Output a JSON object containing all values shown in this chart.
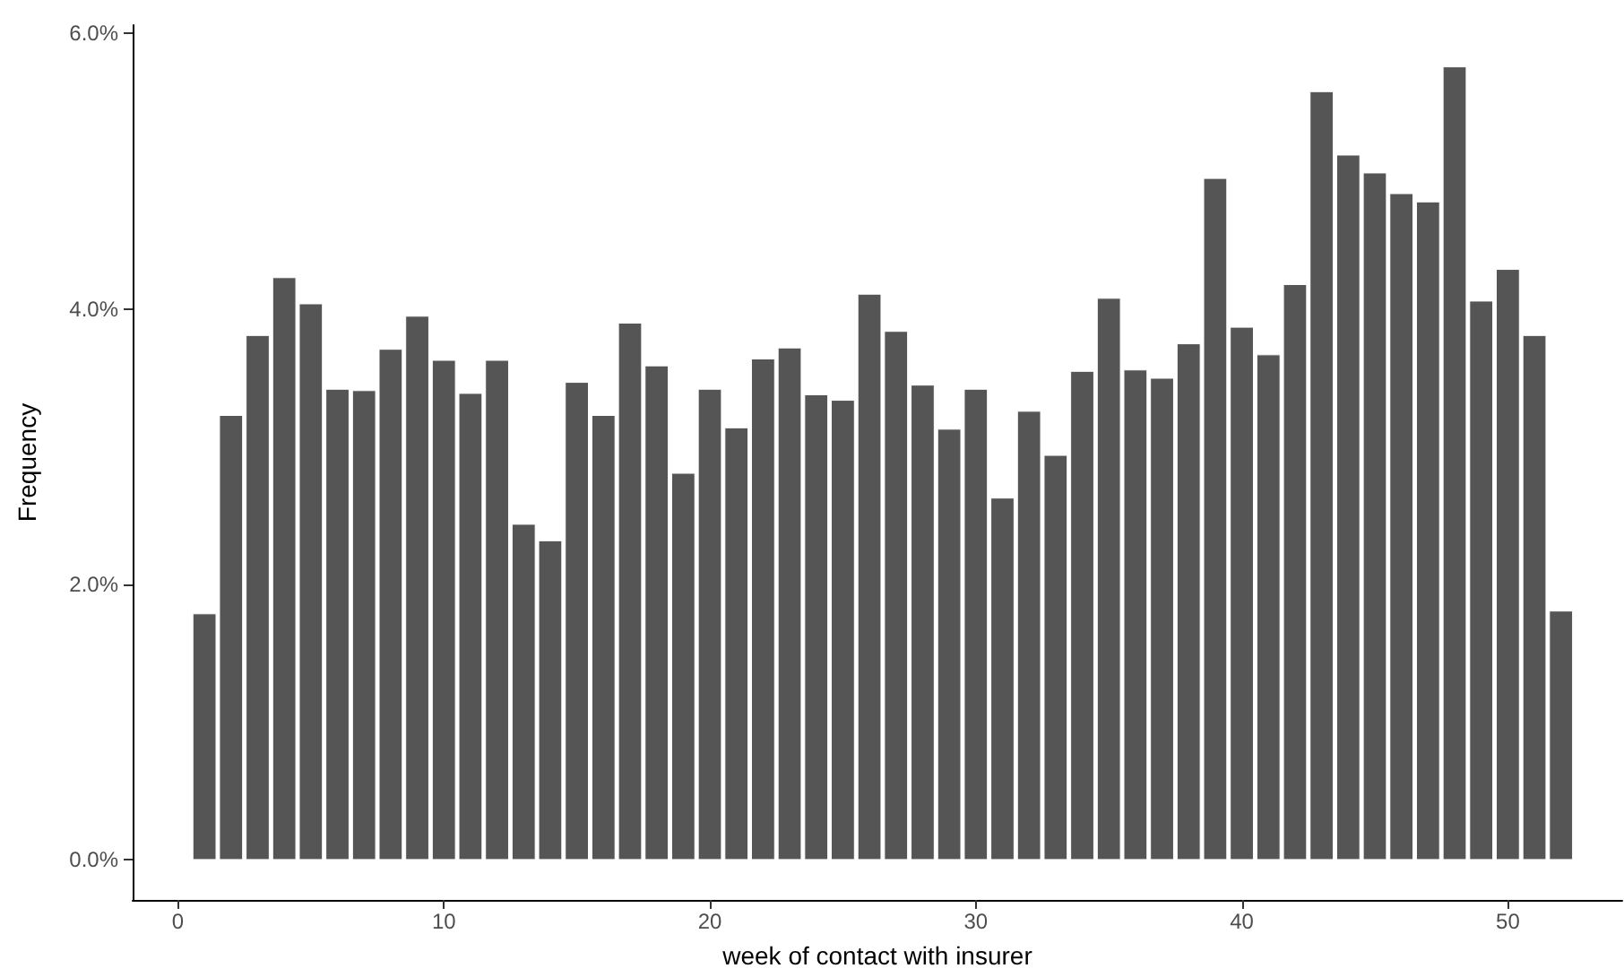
{
  "chart_data": {
    "type": "bar",
    "xlabel": "week of contact with insurer",
    "ylabel": "Frequency",
    "x": [
      1,
      2,
      3,
      4,
      5,
      6,
      7,
      8,
      9,
      10,
      11,
      12,
      13,
      14,
      15,
      16,
      17,
      18,
      19,
      20,
      21,
      22,
      23,
      24,
      25,
      26,
      27,
      28,
      29,
      30,
      31,
      32,
      33,
      34,
      35,
      36,
      37,
      38,
      39,
      40,
      41,
      42,
      43,
      44,
      45,
      46,
      47,
      48,
      49,
      50,
      51,
      52
    ],
    "values": [
      1.79,
      3.23,
      3.81,
      4.23,
      4.04,
      3.42,
      3.41,
      3.71,
      3.95,
      3.63,
      3.39,
      3.63,
      2.44,
      2.32,
      3.47,
      3.23,
      3.9,
      3.59,
      2.81,
      3.42,
      3.14,
      3.64,
      3.72,
      3.38,
      3.34,
      4.11,
      3.84,
      3.45,
      3.13,
      3.42,
      2.63,
      3.26,
      2.94,
      3.55,
      4.08,
      3.56,
      3.5,
      3.75,
      4.95,
      3.87,
      3.67,
      4.18,
      5.58,
      5.12,
      4.99,
      4.84,
      4.78,
      5.76,
      4.06,
      4.29,
      3.81,
      1.81
    ],
    "color": "#555555",
    "xlim": [
      -1.7,
      54.3
    ],
    "xticks": [
      0,
      10,
      20,
      30,
      40,
      50
    ],
    "ylim": [
      -0.29,
      6.06
    ],
    "yticks": [
      {
        "value": 0,
        "label": "0.0%"
      },
      {
        "value": 2,
        "label": "2.0%"
      },
      {
        "value": 4,
        "label": "4.0%"
      },
      {
        "value": 6,
        "label": "6.0%"
      }
    ],
    "grid": false
  }
}
